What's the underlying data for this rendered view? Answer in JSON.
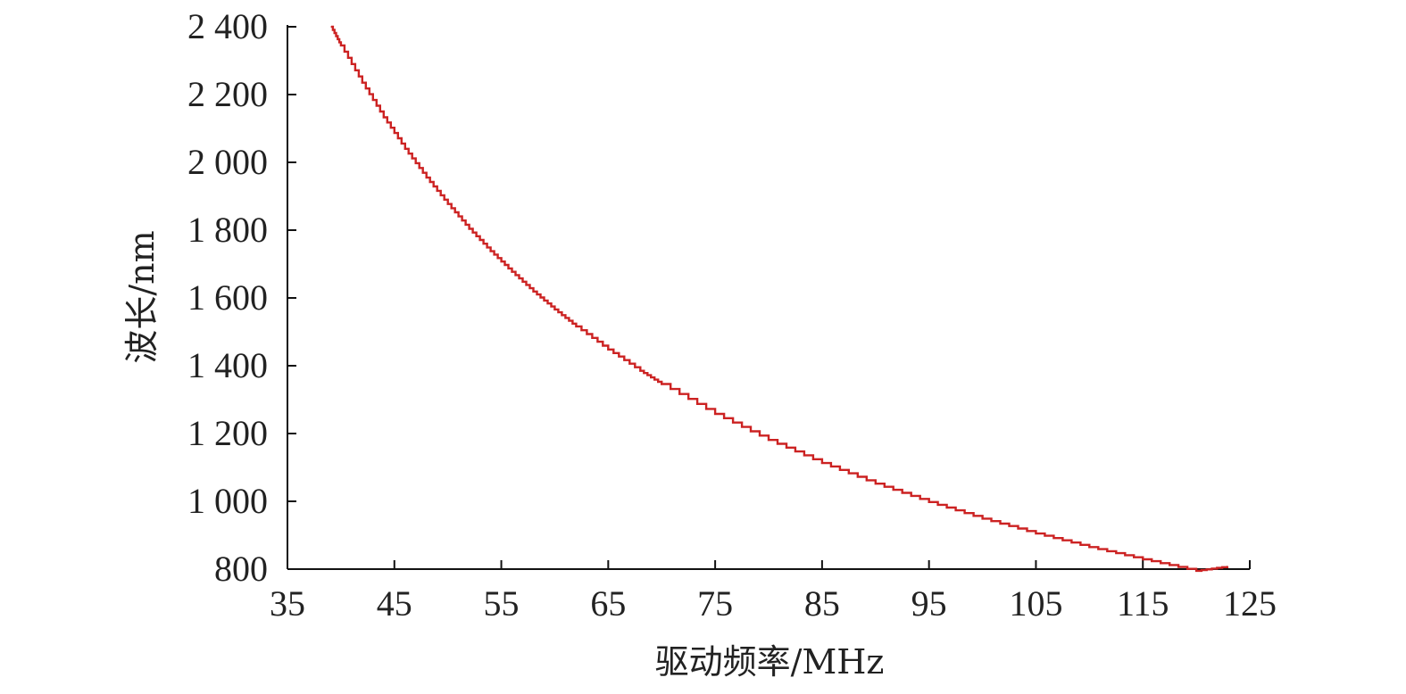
{
  "chart_data": {
    "type": "line",
    "xlabel": "驱动频率/MHz",
    "ylabel": "波长/nm",
    "xlim": [
      35,
      125
    ],
    "ylim": [
      800,
      2400
    ],
    "xticks": [
      35,
      45,
      55,
      65,
      75,
      85,
      95,
      105,
      115,
      125
    ],
    "yticks": [
      800,
      1000,
      1200,
      1400,
      1600,
      1800,
      2000,
      2200,
      2400
    ],
    "xtick_labels": [
      "35",
      "45",
      "55",
      "65",
      "75",
      "85",
      "95",
      "105",
      "115",
      "125"
    ],
    "ytick_labels": [
      "800",
      "1 000",
      "1 200",
      "1 400",
      "1 600",
      "1 800",
      "2 000",
      "2 200",
      "2 400"
    ],
    "grid": false,
    "line_color": "#cc2222",
    "series": [
      {
        "x": [
          39.1,
          40,
          42,
          44,
          46,
          48,
          50,
          52,
          54,
          56,
          58,
          60,
          62,
          65,
          68,
          70,
          75,
          80,
          85,
          90,
          95,
          100,
          105,
          110,
          115,
          120,
          122.9
        ],
        "values": [
          2400,
          2345,
          2235,
          2133,
          2040,
          1955,
          1877,
          1804,
          1738,
          1677,
          1619,
          1566,
          1516,
          1448,
          1385,
          1346,
          1258,
          1181,
          1113,
          1052,
          998,
          949,
          905,
          865,
          829,
          795,
          808
        ]
      }
    ]
  }
}
